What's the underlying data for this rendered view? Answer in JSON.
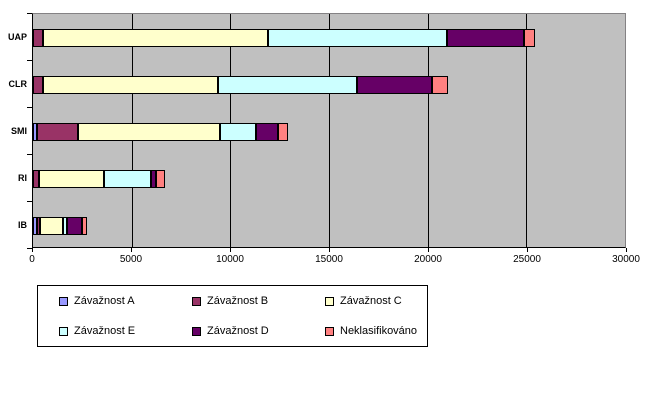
{
  "chart_data": {
    "type": "bar",
    "orientation": "horizontal",
    "stacked": true,
    "title": "",
    "xlabel": "",
    "ylabel": "",
    "xlim": [
      0,
      30000
    ],
    "x_ticks": [
      0,
      5000,
      10000,
      15000,
      20000,
      25000,
      30000
    ],
    "grid": true,
    "plot_bg": "#c0c0c0",
    "legend_position": "bottom",
    "categories": [
      "UAP",
      "CLR",
      "SMI",
      "RI",
      "IB"
    ],
    "series": [
      {
        "name": "Závažnost A",
        "color": "#9999ff",
        "values": [
          0,
          0,
          200,
          0,
          200
        ]
      },
      {
        "name": "Závažnost B",
        "color": "#993366",
        "values": [
          500,
          500,
          2100,
          300,
          150
        ]
      },
      {
        "name": "Závažnost C",
        "color": "#ffffcc",
        "values": [
          11400,
          8900,
          7200,
          3300,
          1150
        ]
      },
      {
        "name": "Závažnost E",
        "color": "#ccffff",
        "values": [
          9100,
          7000,
          1800,
          2400,
          200
        ]
      },
      {
        "name": "Závažnost D",
        "color": "#660066",
        "values": [
          3900,
          3800,
          1100,
          250,
          800
        ]
      },
      {
        "name": "Neklasifikováno",
        "color": "#ff8080",
        "values": [
          550,
          850,
          500,
          450,
          250
        ]
      }
    ],
    "totals": [
      25450,
      21050,
      12900,
      6700,
      2750
    ]
  },
  "legend": {
    "items": [
      {
        "label": "Závažnost A",
        "color": "#9999ff"
      },
      {
        "label": "Závažnost B",
        "color": "#993366"
      },
      {
        "label": "Závažnost C",
        "color": "#ffffcc"
      },
      {
        "label": "Závažnost E",
        "color": "#ccffff"
      },
      {
        "label": "Závažnost D",
        "color": "#660066"
      },
      {
        "label": "Neklasifikováno",
        "color": "#ff8080"
      }
    ]
  }
}
